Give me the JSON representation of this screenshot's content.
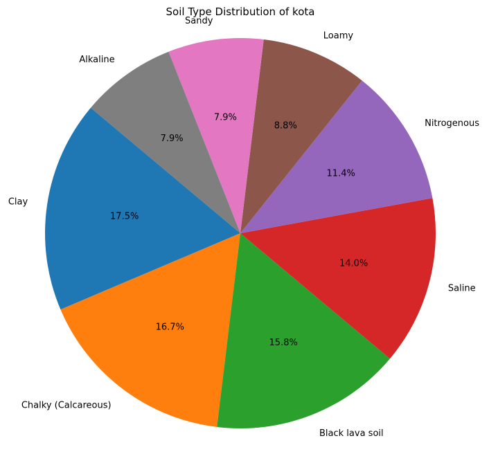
{
  "chart_data": {
    "type": "pie",
    "title": "Soil Type Distribution of kota",
    "start_angle_deg": 140,
    "direction": "counterclockwise",
    "slices": [
      {
        "label": "Clay",
        "value": 17.5,
        "pct_label": "17.5%",
        "color": "#1f77b4"
      },
      {
        "label": "Chalky (Calcareous)",
        "value": 16.7,
        "pct_label": "16.7%",
        "color": "#ff7f0e"
      },
      {
        "label": "Black lava soil",
        "value": 15.8,
        "pct_label": "15.8%",
        "color": "#2ca02c"
      },
      {
        "label": "Saline",
        "value": 14.0,
        "pct_label": "14.0%",
        "color": "#d62728"
      },
      {
        "label": "Nitrogenous",
        "value": 11.4,
        "pct_label": "11.4%",
        "color": "#9467bd"
      },
      {
        "label": "Loamy",
        "value": 8.8,
        "pct_label": "8.8%",
        "color": "#8c564b"
      },
      {
        "label": "Sandy",
        "value": 7.9,
        "pct_label": "7.9%",
        "color": "#e377c2"
      },
      {
        "label": "Alkaline",
        "value": 7.9,
        "pct_label": "7.9%",
        "color": "#7f7f7f"
      }
    ]
  }
}
